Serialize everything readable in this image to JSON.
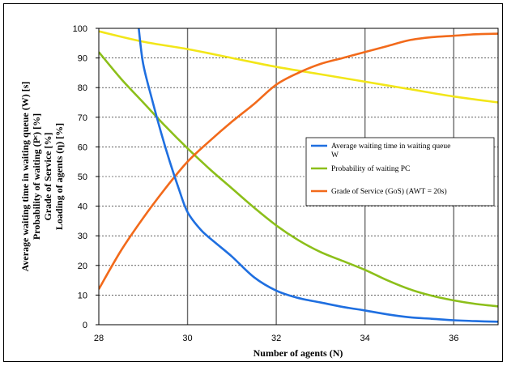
{
  "chart_data": {
    "type": "line",
    "title": "",
    "xlabel": "Number of agents (N)",
    "ylabel_lines": [
      "Average waiting time in waiting queue  (W) [s]",
      "Probability of waiting (Pᶜ) [%]",
      "Grade of Service [%]",
      "Loading of agents (η) [%]"
    ],
    "xlim": [
      28,
      37
    ],
    "ylim": [
      0,
      100
    ],
    "x_ticks": [
      "28",
      "30",
      "32",
      "34",
      "36"
    ],
    "x_tick_values": [
      28,
      30,
      32,
      34,
      36
    ],
    "y_ticks": [
      "0",
      "10",
      "20",
      "30",
      "40",
      "50",
      "60",
      "70",
      "80",
      "90",
      "100"
    ],
    "y_tick_values": [
      0,
      10,
      20,
      30,
      40,
      50,
      60,
      70,
      80,
      90,
      100
    ],
    "grid": true,
    "legend_position": "center-right",
    "series": [
      {
        "name": "Average waiting time in waiting queue W",
        "legend_lines": [
          "Average waiting time in waiting queue",
          "W"
        ],
        "color": "#1f6fe0",
        "x": [
          28.9,
          29.0,
          29.2,
          29.4,
          29.6,
          29.8,
          30.0,
          30.3,
          30.6,
          31.0,
          31.5,
          32.0,
          32.5,
          33.0,
          33.5,
          34.0,
          34.5,
          35.0,
          35.5,
          36.0,
          36.5,
          37.0
        ],
        "y": [
          100,
          88,
          76,
          65,
          55,
          46,
          38,
          32,
          28,
          23,
          16,
          11.5,
          9,
          7.5,
          6,
          4.8,
          3.5,
          2.5,
          2,
          1.5,
          1.2,
          1.0
        ]
      },
      {
        "name": "Probability of waiting PC",
        "legend_lines": [
          "Probability of waiting PC"
        ],
        "color": "#8cbf1a",
        "x": [
          28,
          28.5,
          29,
          29.5,
          30,
          30.5,
          31,
          31.5,
          32,
          32.5,
          33,
          33.5,
          34,
          34.5,
          35,
          35.5,
          36,
          36.5,
          37
        ],
        "y": [
          92,
          83,
          75,
          67,
          59.5,
          52.5,
          46,
          39.5,
          33.5,
          28.5,
          24.5,
          21.5,
          18.5,
          15,
          12,
          9.8,
          8.2,
          7,
          6.2
        ]
      },
      {
        "name": "Grade of Service (GoS) (AWT = 20s)",
        "legend_lines": [
          "Grade of Service (GoS) (AWT = 20s)"
        ],
        "color": "#f26a1b",
        "x": [
          28,
          28.5,
          29,
          29.5,
          30,
          30.5,
          31,
          31.5,
          32,
          32.5,
          33,
          33.5,
          34,
          34.5,
          35,
          35.5,
          36,
          36.5,
          37
        ],
        "y": [
          12,
          25,
          36,
          46,
          55,
          62,
          68.5,
          74.5,
          81,
          85,
          88,
          90,
          92,
          94,
          96,
          97,
          97.5,
          98,
          98.2
        ]
      },
      {
        "name": "Loading of agents",
        "color": "#f2e619",
        "x": [
          28,
          29,
          30,
          31,
          32,
          33,
          34,
          35,
          36,
          37
        ],
        "y": [
          99,
          95.5,
          93,
          90,
          87,
          84.5,
          82,
          79.5,
          77,
          75
        ]
      }
    ]
  }
}
